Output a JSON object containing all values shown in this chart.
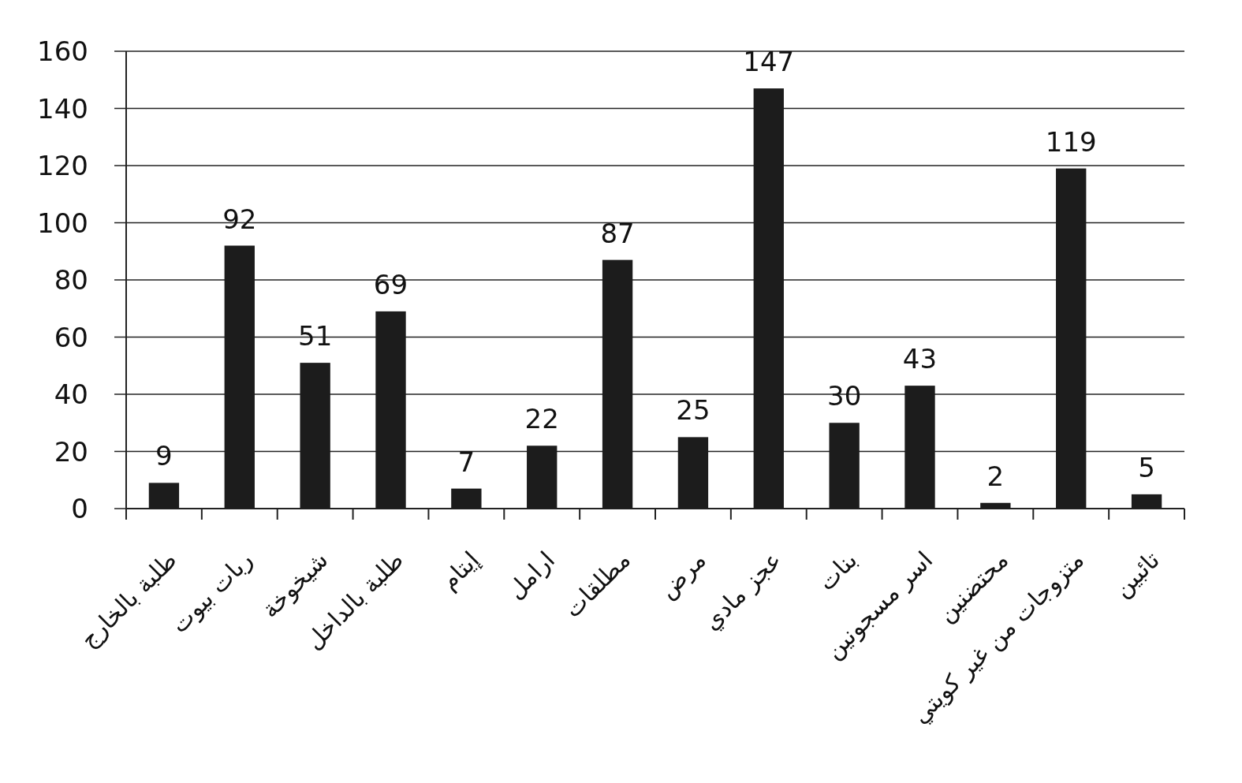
{
  "chart_data": {
    "type": "bar",
    "categories": [
      "طلبة بالخارج",
      "ربات بيوت",
      "شيخوخة",
      "طلبة بالداخل",
      "إيتام",
      "ارامل",
      "مطلقات",
      "مرض",
      "عجز مادي",
      "بنات",
      "اسر مسجونين",
      "محتضنين",
      "متزوجات من غير كويتي",
      "تائبين"
    ],
    "values": [
      9,
      92,
      51,
      69,
      7,
      22,
      87,
      25,
      147,
      30,
      43,
      2,
      119,
      5
    ],
    "color": "#1c1c1c",
    "ylim": [
      0,
      160
    ],
    "yticks": [
      0,
      20,
      40,
      60,
      80,
      100,
      120,
      140,
      160
    ],
    "grid": "y",
    "data_labels": true
  }
}
